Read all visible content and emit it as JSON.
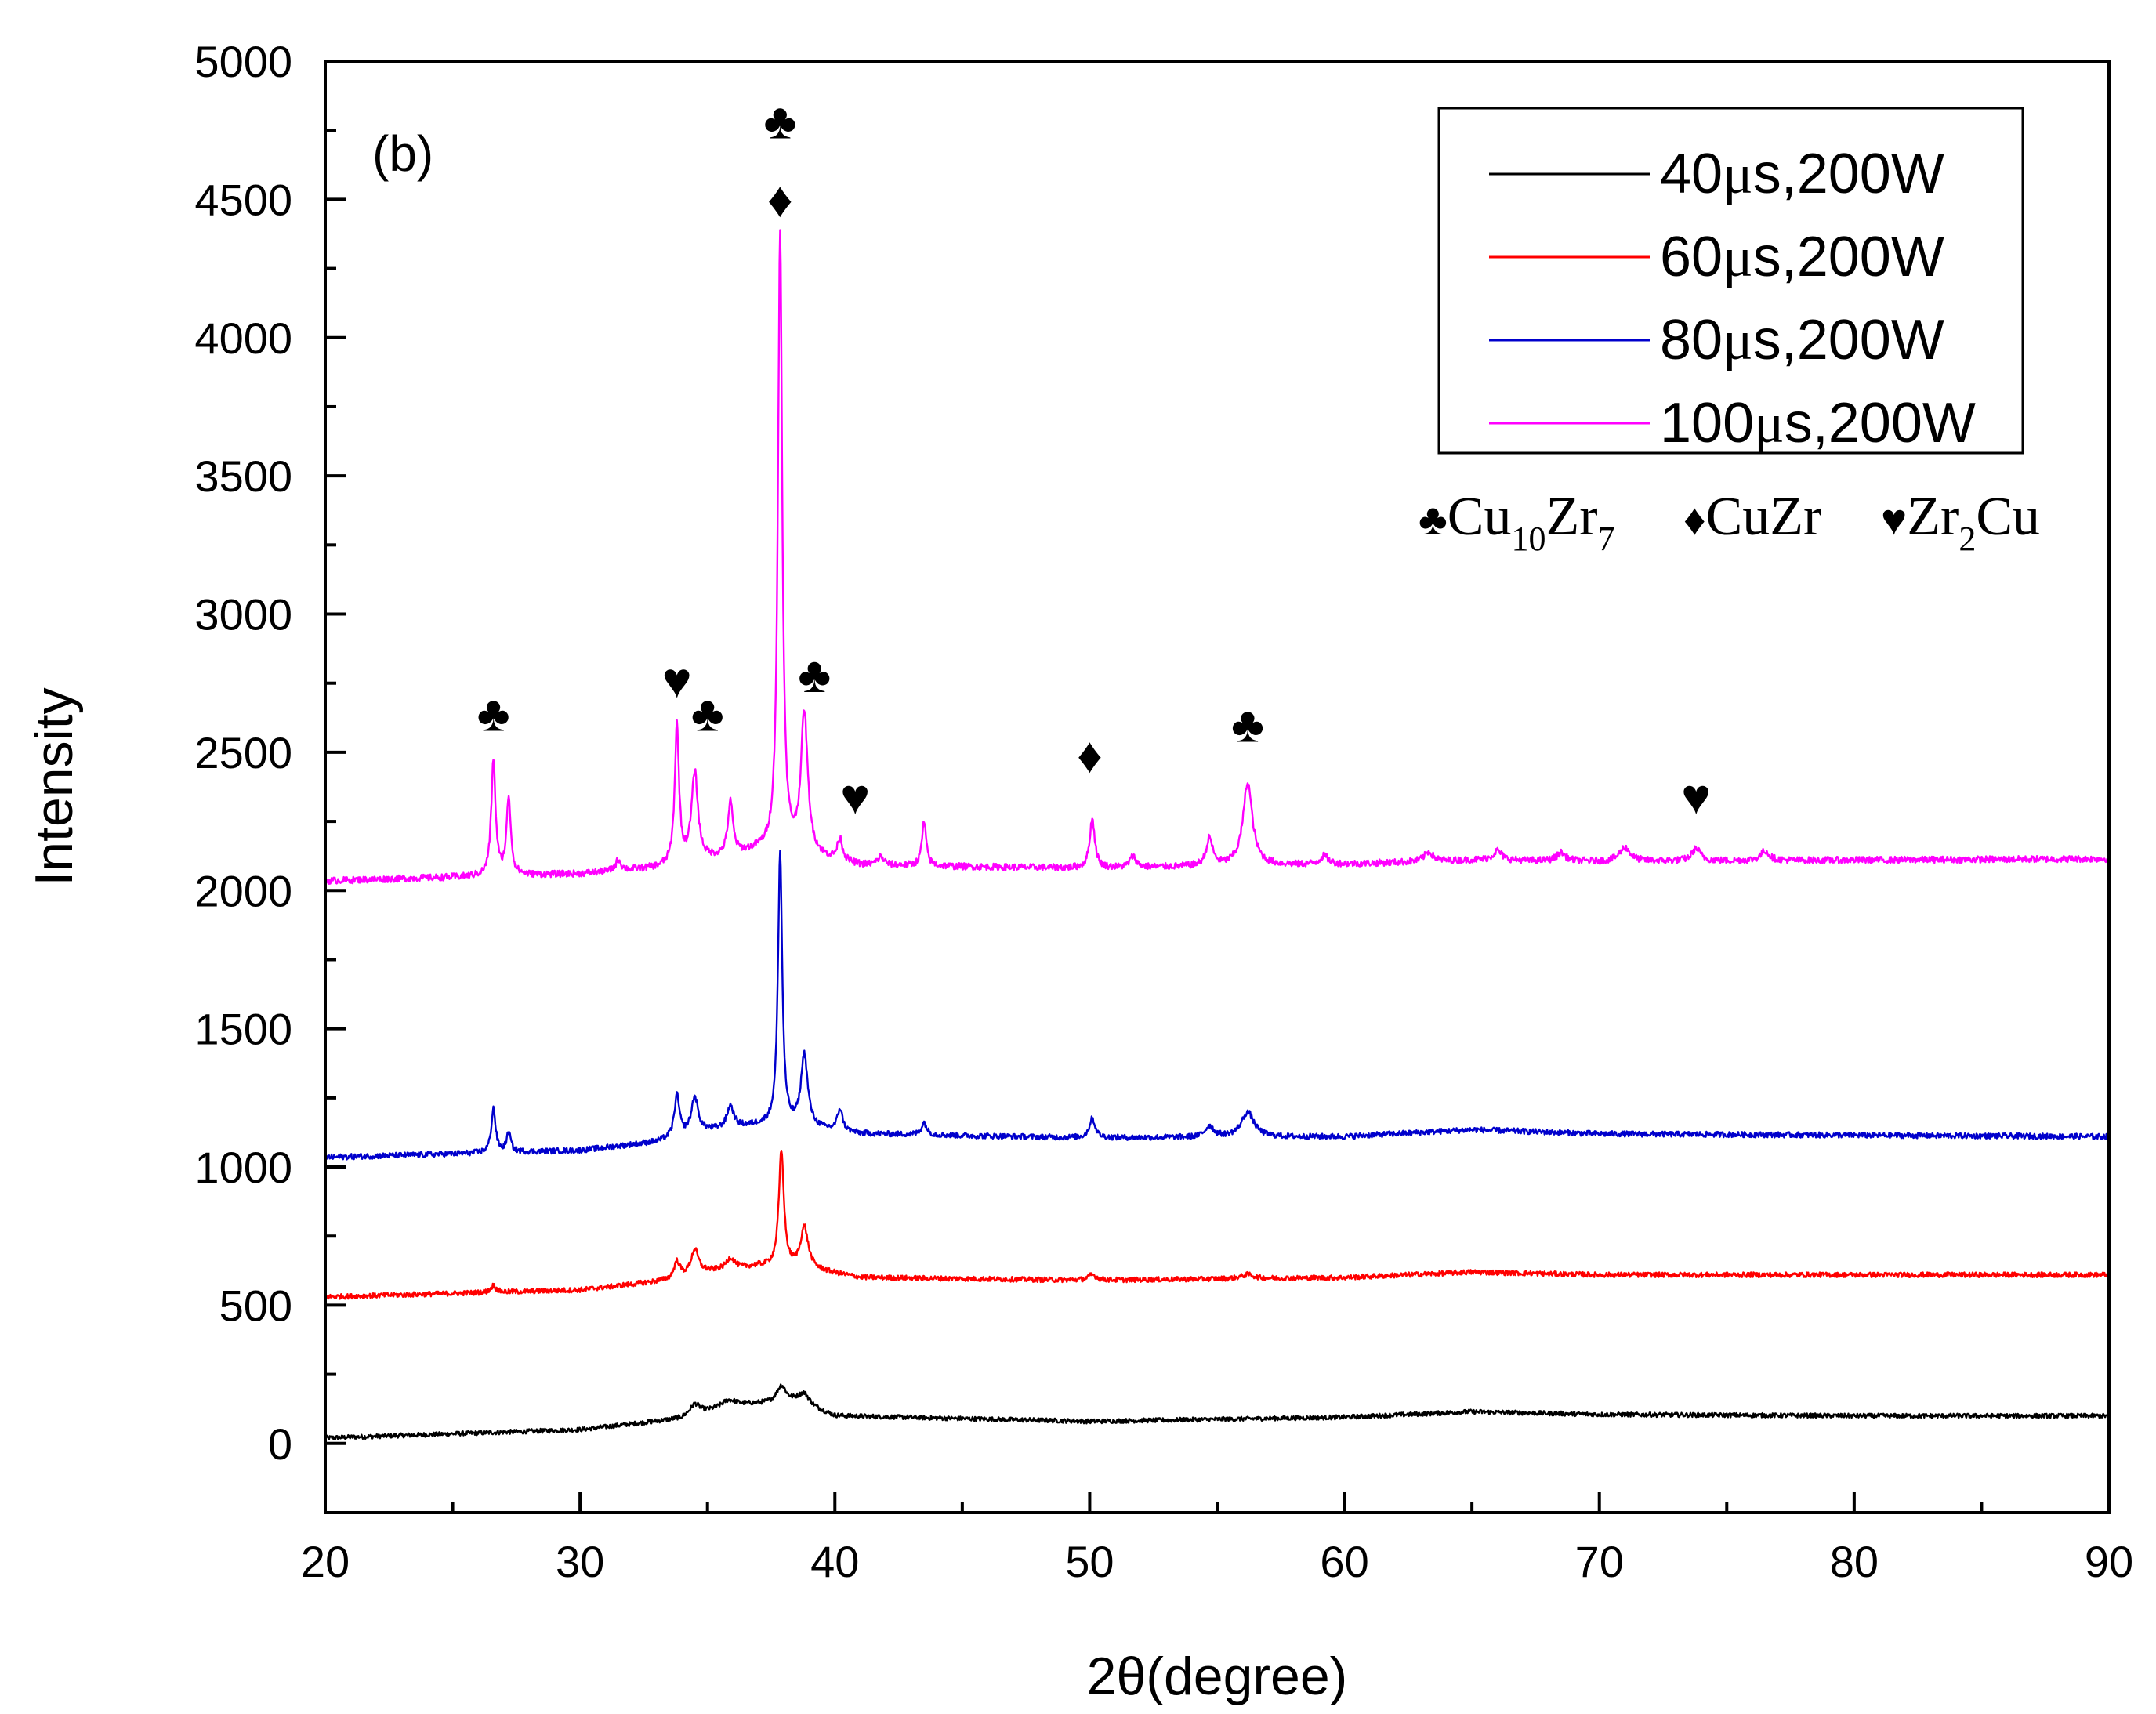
{
  "chart_data": {
    "type": "line",
    "panel_label": "(b)",
    "xlabel": "2θ(degree)",
    "ylabel": "Intensity",
    "xlim": [
      20,
      90
    ],
    "ylim": [
      -250,
      5000
    ],
    "x_ticks": [
      20,
      30,
      40,
      50,
      60,
      70,
      80,
      90
    ],
    "x_minor_ticks": [
      25,
      35,
      45,
      55,
      65,
      75,
      85
    ],
    "y_ticks": [
      0,
      500,
      1000,
      1500,
      2000,
      2500,
      3000,
      3500,
      4000,
      4500,
      5000
    ],
    "y_minor_ticks": [
      -250,
      250,
      750,
      1250,
      1750,
      2250,
      2750,
      3250,
      3750,
      4250,
      4750
    ],
    "series": [
      {
        "name": "40μs,200W",
        "label_parts": [
          "40",
          "μ",
          "s,200W"
        ],
        "color": "#000000",
        "baseline": [
          [
            20,
            20
          ],
          [
            30,
            50
          ],
          [
            34,
            90
          ],
          [
            36,
            140
          ],
          [
            38.5,
            150
          ],
          [
            40,
            100
          ],
          [
            50,
            80
          ],
          [
            60,
            95
          ],
          [
            65,
            115
          ],
          [
            70,
            105
          ],
          [
            80,
            100
          ],
          [
            90,
            100
          ]
        ],
        "peaks": [
          [
            34.5,
            40,
            0.25
          ],
          [
            35.8,
            20,
            0.3
          ],
          [
            37.9,
            60,
            0.22
          ],
          [
            38.8,
            40,
            0.25
          ]
        ],
        "noise": 8
      },
      {
        "name": "60μs,200W",
        "label_parts": [
          "60",
          "μ",
          "s,200W"
        ],
        "color": "#ff0000",
        "baseline": [
          [
            20,
            530
          ],
          [
            30,
            555
          ],
          [
            33.5,
            590
          ],
          [
            35,
            620
          ],
          [
            37,
            640
          ],
          [
            39,
            630
          ],
          [
            41,
            600
          ],
          [
            50,
            590
          ],
          [
            60,
            600
          ],
          [
            65,
            620
          ],
          [
            70,
            610
          ],
          [
            80,
            610
          ],
          [
            90,
            610
          ]
        ],
        "peaks": [
          [
            26.6,
            25,
            0.12
          ],
          [
            33.8,
            60,
            0.14
          ],
          [
            34.5,
            90,
            0.18
          ],
          [
            35.9,
            40,
            0.2
          ],
          [
            37.9,
            420,
            0.12
          ],
          [
            38.8,
            150,
            0.18
          ],
          [
            50.1,
            20,
            0.2
          ],
          [
            56.2,
            15,
            0.3
          ]
        ],
        "noise": 9
      },
      {
        "name": "80μs,200W",
        "label_parts": [
          "80",
          "μ",
          "s,200W"
        ],
        "color": "#0000cc",
        "baseline": [
          [
            20,
            1035
          ],
          [
            30,
            1060
          ],
          [
            33,
            1090
          ],
          [
            35,
            1130
          ],
          [
            37,
            1150
          ],
          [
            39,
            1140
          ],
          [
            41,
            1120
          ],
          [
            50,
            1105
          ],
          [
            60,
            1110
          ],
          [
            65,
            1135
          ],
          [
            70,
            1120
          ],
          [
            80,
            1115
          ],
          [
            90,
            1110
          ]
        ],
        "peaks": [
          [
            26.6,
            160,
            0.1
          ],
          [
            27.2,
            70,
            0.1
          ],
          [
            33.8,
            150,
            0.12
          ],
          [
            34.5,
            130,
            0.16
          ],
          [
            35.9,
            80,
            0.16
          ],
          [
            37.85,
            990,
            0.1
          ],
          [
            38.8,
            260,
            0.16
          ],
          [
            40.2,
            80,
            0.12
          ],
          [
            43.5,
            45,
            0.12
          ],
          [
            50.1,
            70,
            0.14
          ],
          [
            54.7,
            40,
            0.2
          ],
          [
            56.2,
            90,
            0.3
          ]
        ],
        "noise": 10
      },
      {
        "name": "100μs,200W",
        "label_parts": [
          "100",
          "μ",
          "s,200W"
        ],
        "color": "#ff00ff",
        "baseline": [
          [
            20,
            2035
          ],
          [
            30,
            2060
          ],
          [
            33,
            2080
          ],
          [
            35,
            2110
          ],
          [
            37,
            2140
          ],
          [
            39,
            2120
          ],
          [
            41,
            2090
          ],
          [
            50,
            2080
          ],
          [
            60,
            2095
          ],
          [
            65,
            2110
          ],
          [
            70,
            2105
          ],
          [
            80,
            2110
          ],
          [
            90,
            2115
          ]
        ],
        "peaks": [
          [
            26.6,
            420,
            0.1
          ],
          [
            27.2,
            280,
            0.1
          ],
          [
            31.5,
            40,
            0.12
          ],
          [
            33.8,
            500,
            0.1
          ],
          [
            34.5,
            320,
            0.15
          ],
          [
            35.9,
            190,
            0.12
          ],
          [
            37.85,
            2250,
            0.1
          ],
          [
            38.8,
            510,
            0.16
          ],
          [
            40.2,
            80,
            0.12
          ],
          [
            41.8,
            30,
            0.15
          ],
          [
            43.5,
            160,
            0.1
          ],
          [
            50.1,
            180,
            0.12
          ],
          [
            51.7,
            40,
            0.15
          ],
          [
            54.7,
            100,
            0.15
          ],
          [
            56.2,
            300,
            0.22
          ],
          [
            59.2,
            30,
            0.2
          ],
          [
            63.3,
            35,
            0.2
          ],
          [
            66,
            35,
            0.2
          ],
          [
            68.5,
            30,
            0.2
          ],
          [
            71,
            50,
            0.25
          ],
          [
            73.8,
            45,
            0.2
          ],
          [
            76.5,
            35,
            0.2
          ]
        ],
        "noise": 12
      }
    ],
    "phase_legend": [
      {
        "symbol": "♣",
        "text": "Cu",
        "sub": "10",
        "text2": "Zr",
        "sub2": "7"
      },
      {
        "symbol": "♦",
        "text": "CuZr",
        "sub": "",
        "text2": "",
        "sub2": ""
      },
      {
        "symbol": "♥",
        "text": "Zr",
        "sub": "2",
        "text2": "Cu",
        "sub2": ""
      }
    ],
    "peak_markers": [
      {
        "x": 26.6,
        "y": 2640,
        "symbols": [
          "♣"
        ]
      },
      {
        "x": 33.8,
        "y": 2760,
        "symbols": [
          "♥"
        ]
      },
      {
        "x": 35.0,
        "y": 2640,
        "symbols": [
          "♣"
        ]
      },
      {
        "x": 37.85,
        "y": 4500,
        "symbols": [
          "♦",
          "♣"
        ]
      },
      {
        "x": 39.2,
        "y": 2780,
        "symbols": [
          "♣"
        ]
      },
      {
        "x": 40.8,
        "y": 2340,
        "symbols": [
          "♥"
        ]
      },
      {
        "x": 50.0,
        "y": 2490,
        "symbols": [
          "♦"
        ]
      },
      {
        "x": 56.2,
        "y": 2600,
        "symbols": [
          "♣"
        ]
      },
      {
        "x": 73.8,
        "y": 2340,
        "symbols": [
          "♥"
        ]
      }
    ]
  }
}
